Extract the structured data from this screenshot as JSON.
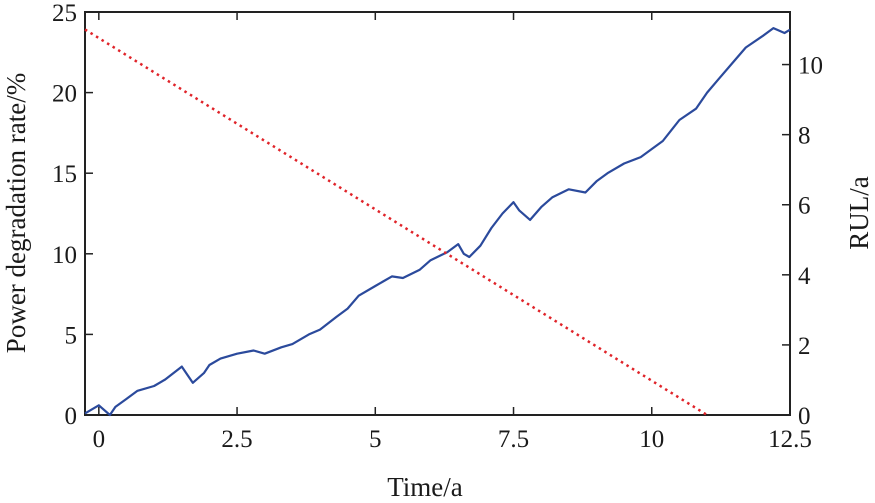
{
  "chart_data": {
    "type": "line",
    "xlabel": "Time/a",
    "ylabel_left": "Power degradation rate/%",
    "ylabel_right": "RUL/a",
    "xlim": [
      -0.25,
      12.5
    ],
    "ylim_left": [
      0,
      25
    ],
    "ylim_right": [
      0,
      11.5
    ],
    "x_ticks": [
      0,
      2.5,
      5,
      7.5,
      10,
      12.5
    ],
    "x_tick_labels": [
      "0",
      "2.5",
      "5",
      "7.5",
      "10",
      "12.5"
    ],
    "y_left_ticks": [
      0,
      5,
      10,
      15,
      20,
      25
    ],
    "y_left_tick_labels": [
      "0",
      "5",
      "10",
      "15",
      "20",
      "25"
    ],
    "y_right_ticks": [
      0,
      2,
      4,
      6,
      8,
      10
    ],
    "y_right_tick_labels": [
      "0",
      "2",
      "4",
      "6",
      "8",
      "10"
    ],
    "grid": false,
    "series": [
      {
        "axis": "left",
        "color": "#2b4a9c",
        "style": "solid",
        "x": [
          -0.25,
          0,
          0.2,
          0.3,
          0.5,
          0.7,
          1.0,
          1.2,
          1.5,
          1.7,
          1.9,
          2.0,
          2.2,
          2.5,
          2.8,
          3.0,
          3.3,
          3.5,
          3.8,
          4.0,
          4.3,
          4.5,
          4.7,
          5.0,
          5.3,
          5.5,
          5.8,
          6.0,
          6.3,
          6.5,
          6.6,
          6.7,
          6.9,
          7.1,
          7.3,
          7.5,
          7.6,
          7.8,
          8.0,
          8.2,
          8.5,
          8.8,
          9.0,
          9.2,
          9.5,
          9.8,
          10.0,
          10.2,
          10.5,
          10.8,
          11.0,
          11.2,
          11.5,
          11.7,
          12.0,
          12.2,
          12.4,
          12.5
        ],
        "values": [
          0.1,
          0.6,
          0.0,
          0.5,
          1.0,
          1.5,
          1.8,
          2.2,
          3.0,
          2.0,
          2.6,
          3.1,
          3.5,
          3.8,
          4.0,
          3.8,
          4.2,
          4.4,
          5.0,
          5.3,
          6.1,
          6.6,
          7.4,
          8.0,
          8.6,
          8.5,
          9.0,
          9.6,
          10.1,
          10.6,
          10.0,
          9.8,
          10.5,
          11.6,
          12.5,
          13.2,
          12.7,
          12.1,
          12.9,
          13.5,
          14.0,
          13.8,
          14.5,
          15.0,
          15.6,
          16.0,
          16.5,
          17.0,
          18.3,
          19.0,
          20.0,
          20.8,
          22.0,
          22.8,
          23.5,
          24.0,
          23.7,
          23.9
        ]
      },
      {
        "axis": "right",
        "color": "#e0242a",
        "style": "dotted",
        "x": [
          -0.25,
          11.0
        ],
        "values": [
          11.0,
          0.0
        ]
      }
    ]
  }
}
